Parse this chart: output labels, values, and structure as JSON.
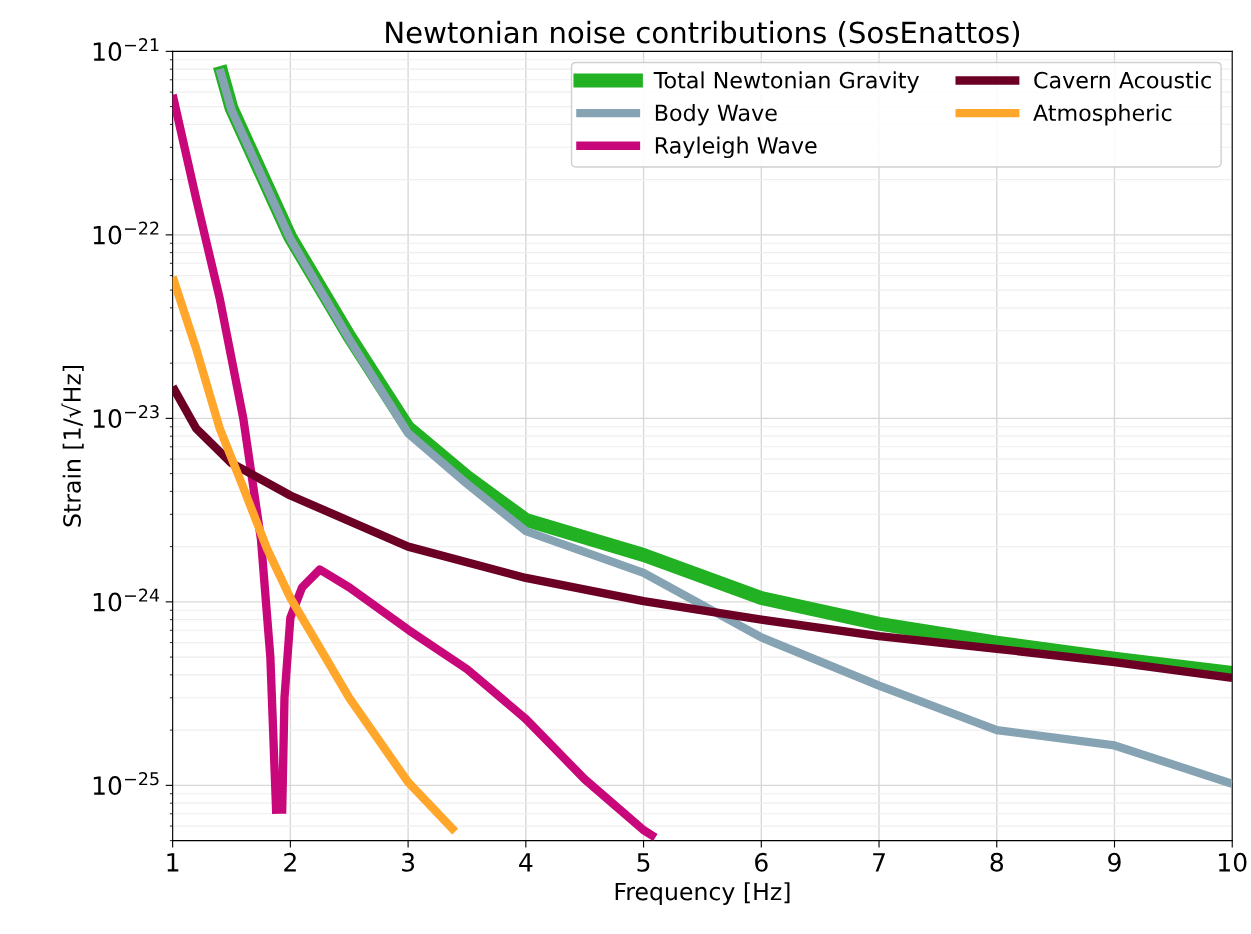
{
  "chart_data": {
    "type": "line",
    "title": "Newtonian noise contributions (SosEnattos)",
    "xlabel": "Frequency [Hz]",
    "ylabel": "Strain [1/√Hz]",
    "log": "y",
    "grid": true,
    "legend": "top right",
    "xlim": [
      1,
      10
    ],
    "xticks": [
      1,
      2,
      3,
      4,
      5,
      6,
      7,
      8,
      9,
      10
    ],
    "ylim": [
      5e-26,
      1e-21
    ],
    "yticks": [
      {
        "value": 1e-25,
        "label": "10$^{−25}$"
      },
      {
        "value": 1e-24,
        "label": "10$^{−24}$"
      },
      {
        "value": 1e-23,
        "label": "10$^{−23}$"
      },
      {
        "value": 1e-22,
        "label": "10$^{−22}$"
      },
      {
        "value": 1e-21,
        "label": "10$^{−21}$"
      }
    ],
    "series": [
      {
        "name": "Total Newtonian Gravity",
        "color": "#22b122",
        "x": [
          1.4,
          1.5,
          2,
          2.5,
          3,
          3.5,
          4,
          5,
          6,
          7,
          8,
          9,
          10
        ],
        "values": [
          8.3e-22,
          4.9e-22,
          9.7e-23,
          2.8e-23,
          8.9e-24,
          4.8e-24,
          2.8e-24,
          1.8e-24,
          1.05e-24,
          7.6e-25,
          6e-25,
          4.9e-25,
          4.1e-25
        ]
      },
      {
        "name": "Body Wave",
        "color": "#85a3b3",
        "x": [
          1.4,
          1.5,
          2,
          2.5,
          3,
          3.5,
          4,
          5,
          6,
          7,
          8,
          9,
          10
        ],
        "values": [
          8e-22,
          4.8e-22,
          9.5e-23,
          2.7e-23,
          8.3e-24,
          4.4e-24,
          2.43e-24,
          1.44e-24,
          6.4e-25,
          3.5e-25,
          2e-25,
          1.65e-25,
          1.02e-25
        ]
      },
      {
        "name": "Rayleigh Wave",
        "color": "#c8077a",
        "x": [
          1,
          1.2,
          1.4,
          1.6,
          1.75,
          1.83,
          1.88,
          1.91,
          1.93,
          1.95,
          2,
          2.1,
          2.25,
          2.5,
          3,
          3.5,
          4,
          4.5,
          5,
          5.1
        ],
        "values": [
          5.8e-22,
          1.57e-22,
          4.5e-23,
          1e-23,
          2.2e-24,
          5e-25,
          7e-26,
          null,
          7e-26,
          3e-25,
          8.2e-25,
          1.2e-24,
          1.5e-24,
          1.2e-24,
          7.05e-25,
          4.3e-25,
          2.3e-25,
          1.08e-25,
          5.7e-26,
          5.2e-26
        ]
      },
      {
        "name": "Cavern Acoustic",
        "color": "#6b0024",
        "x": [
          1,
          1.2,
          1.5,
          2,
          3,
          4,
          5,
          6,
          7,
          8,
          9,
          10
        ],
        "values": [
          1.49e-23,
          8.8e-24,
          5.7e-24,
          3.8e-24,
          2e-24,
          1.35e-24,
          1.01e-24,
          8e-25,
          6.5e-25,
          5.55e-25,
          4.7e-25,
          3.85e-25
        ]
      },
      {
        "name": "Atmospheric",
        "color": "#ffa62b",
        "x": [
          1,
          1.2,
          1.4,
          1.6,
          1.8,
          2,
          2.5,
          3,
          3.4
        ],
        "values": [
          5.9e-23,
          2.4e-23,
          8.8e-24,
          4.2e-24,
          1.96e-24,
          1.05e-24,
          3e-25,
          1.04e-25,
          5.6e-26
        ]
      }
    ]
  }
}
